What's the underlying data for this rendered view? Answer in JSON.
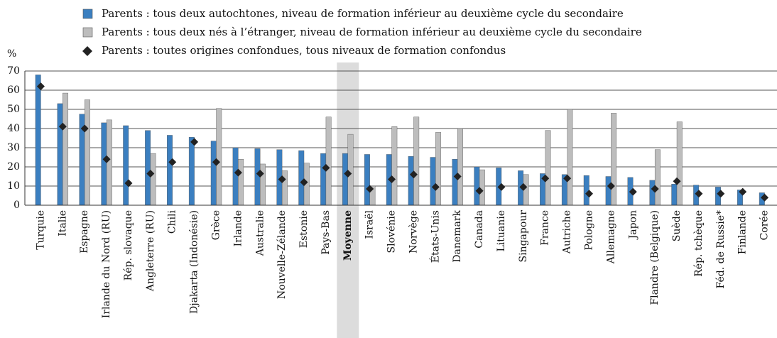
{
  "chart_data": {
    "type": "bar",
    "y_label": "%",
    "categories": [
      "Turquie",
      "Italie",
      "Espagne",
      "Irlande du Nord (RU)",
      "Rép. slovaque",
      "Angleterre (RU)",
      "Chili",
      "Djakarta (Indonésie)",
      "Grèce",
      "Irlande",
      "Australie",
      "Nouvelle-Zélande",
      "Estonie",
      "Pays-Bas",
      "Moyenne",
      "Israël",
      "Slovénie",
      "Norvège",
      "États-Unis",
      "Danemark",
      "Canada",
      "Lituanie",
      "Singapour",
      "France",
      "Autriche",
      "Pologne",
      "Allemagne",
      "Japon",
      "Flandre (Belgique)",
      "Suède",
      "Rép. tchèque",
      "Féd. de Russie*",
      "Finlande",
      "Corée"
    ],
    "highlight_category": "Moyenne",
    "series": [
      {
        "name": "Parents : tous deux autochtones, niveau de formation inférieur au deuxième cycle du secondaire",
        "color": "#3b7fc0",
        "mark": "bar",
        "values": [
          68,
          53,
          47.5,
          43,
          41.5,
          39,
          36.5,
          35.5,
          33.5,
          30,
          29.5,
          29,
          28.5,
          27,
          27,
          26.5,
          26.5,
          25.5,
          25,
          24,
          20,
          19.5,
          18,
          16.5,
          16,
          15.5,
          15,
          14.5,
          13,
          11,
          10.5,
          9.5,
          8,
          6.5
        ]
      },
      {
        "name": "Parents : tous deux nés à l’étranger, niveau de formation inférieur au deuxième cycle du secondaire",
        "color": "#bdbdbd",
        "mark": "bar",
        "values": [
          null,
          58.5,
          55,
          44.5,
          null,
          27,
          null,
          null,
          50.5,
          24,
          21.5,
          18,
          22,
          46,
          37,
          10,
          41,
          46,
          38,
          40,
          18.5,
          null,
          16,
          39,
          50,
          null,
          48,
          null,
          29,
          43.5,
          null,
          null,
          null,
          null
        ]
      },
      {
        "name": "Parents : toutes origines confondues, tous niveaux de formation confondus",
        "color": "#222222",
        "mark": "diamond",
        "values": [
          62,
          41,
          40,
          24,
          11.5,
          16.5,
          22.5,
          33,
          22.5,
          17,
          16.5,
          13.5,
          12,
          19.5,
          16.5,
          8.5,
          13.5,
          16,
          9.5,
          15,
          7.5,
          9.5,
          9.5,
          14,
          14,
          6,
          10,
          7,
          8.5,
          12.5,
          6,
          6,
          7,
          4
        ]
      }
    ],
    "ylim": [
      0,
      70
    ],
    "yticks": [
      0,
      10,
      20,
      30,
      40,
      50,
      60,
      70
    ],
    "grid": true
  }
}
